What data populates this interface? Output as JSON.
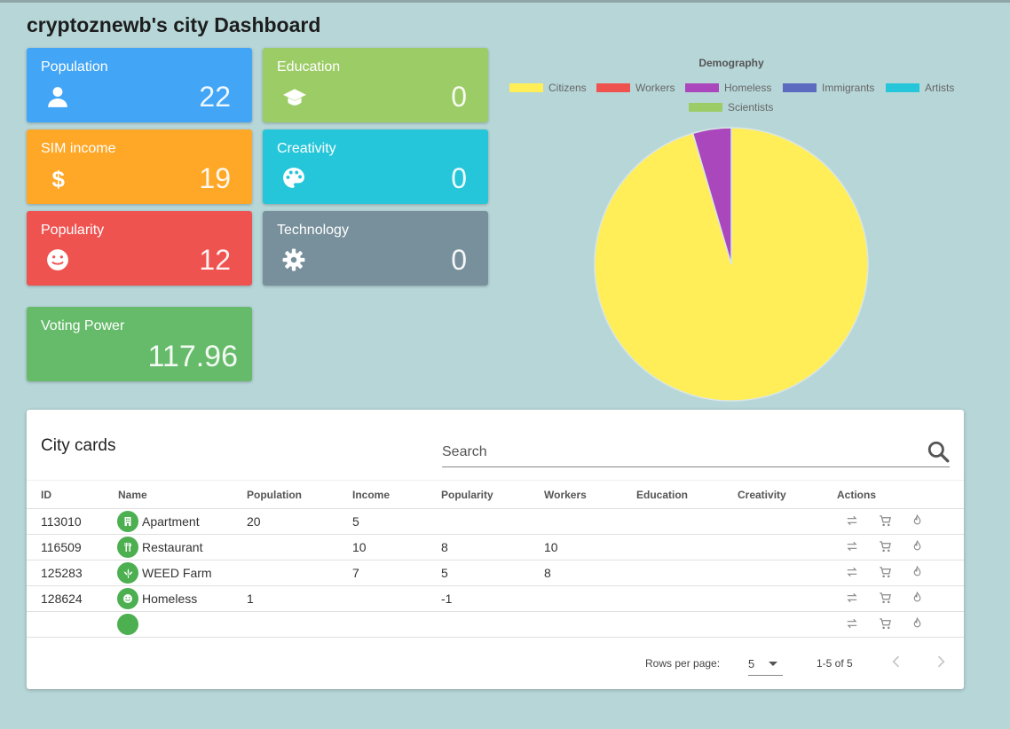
{
  "header": {
    "title": "cryptoznewb's city Dashboard"
  },
  "stats": {
    "population": {
      "label": "Population",
      "value": "22",
      "color": "#42a5f5",
      "icon": "person-icon"
    },
    "education": {
      "label": "Education",
      "value": "0",
      "color": "#9ccc65",
      "icon": "graduation-cap-icon"
    },
    "sim_income": {
      "label": "SIM income",
      "value": "19",
      "color": "#ffa726",
      "icon": "dollar-icon"
    },
    "creativity": {
      "label": "Creativity",
      "value": "0",
      "color": "#26c6da",
      "icon": "palette-icon"
    },
    "popularity": {
      "label": "Popularity",
      "value": "12",
      "color": "#ef5350",
      "icon": "smiley-icon"
    },
    "technology": {
      "label": "Technology",
      "value": "0",
      "color": "#78909c",
      "icon": "gear-icon"
    },
    "voting_power": {
      "label": "Voting Power",
      "value": "117.96",
      "color": "#66bb6a"
    }
  },
  "chart_data": {
    "type": "pie",
    "title": "Demography",
    "legend_position": "top",
    "categories": [
      "Citizens",
      "Workers",
      "Homeless",
      "Immigrants",
      "Artists",
      "Scientists"
    ],
    "values": [
      21,
      0,
      1,
      0,
      0,
      0
    ],
    "colors": [
      "#ffee58",
      "#ef5350",
      "#ab47bc",
      "#5c6bc0",
      "#26c6da",
      "#9ccc65"
    ]
  },
  "city_cards": {
    "title": "City cards",
    "search_placeholder": "Search",
    "columns": [
      "ID",
      "Name",
      "Population",
      "Income",
      "Popularity",
      "Workers",
      "Education",
      "Creativity",
      "Actions"
    ],
    "rows": [
      {
        "id": "113010",
        "name": "Apartment",
        "icon": "building-icon",
        "population": "20",
        "income": "5",
        "popularity": "",
        "workers": "",
        "education": "",
        "creativity": ""
      },
      {
        "id": "116509",
        "name": "Restaurant",
        "icon": "fork-knife-icon",
        "population": "",
        "income": "10",
        "popularity": "8",
        "workers": "10",
        "education": "",
        "creativity": ""
      },
      {
        "id": "125283",
        "name": "WEED Farm",
        "icon": "leaf-icon",
        "population": "",
        "income": "7",
        "popularity": "5",
        "workers": "8",
        "education": "",
        "creativity": ""
      },
      {
        "id": "128624",
        "name": "Homeless",
        "icon": "smiley-icon",
        "population": "1",
        "income": "",
        "popularity": "-1",
        "workers": "",
        "education": "",
        "creativity": ""
      },
      {
        "id": "",
        "name": "",
        "icon": "",
        "population": "",
        "income": "",
        "popularity": "",
        "workers": "",
        "education": "",
        "creativity": ""
      }
    ],
    "footer": {
      "rows_per_page_label": "Rows per page:",
      "rows_per_page": "5",
      "range": "1-5 of 5"
    }
  }
}
